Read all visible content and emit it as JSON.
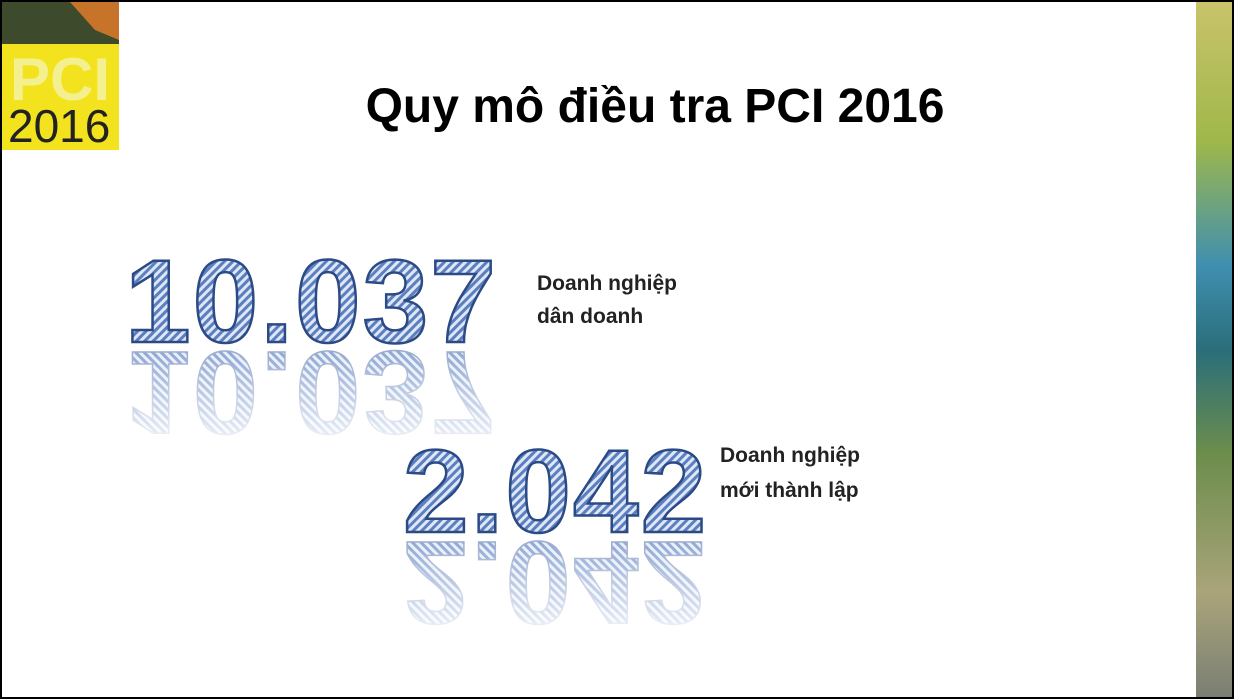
{
  "header": {
    "title": "Quy mô điều tra PCI 2016",
    "logo": {
      "top": "PCI",
      "bottom": "2016"
    }
  },
  "stats": [
    {
      "number": "10.037",
      "label": [
        "Doanh nghiệp",
        "dân doanh"
      ]
    },
    {
      "number": "2.042",
      "label": [
        "Doanh nghiệp",
        "mới thành lập"
      ]
    }
  ]
}
